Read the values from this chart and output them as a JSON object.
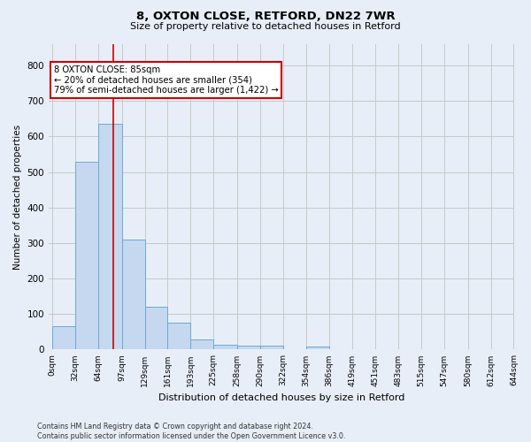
{
  "title_line1": "8, OXTON CLOSE, RETFORD, DN22 7WR",
  "title_line2": "Size of property relative to detached houses in Retford",
  "xlabel": "Distribution of detached houses by size in Retford",
  "ylabel": "Number of detached properties",
  "footnote": "Contains HM Land Registry data © Crown copyright and database right 2024.\nContains public sector information licensed under the Open Government Licence v3.0.",
  "bin_labels": [
    "0sqm",
    "32sqm",
    "64sqm",
    "97sqm",
    "129sqm",
    "161sqm",
    "193sqm",
    "225sqm",
    "258sqm",
    "290sqm",
    "322sqm",
    "354sqm",
    "386sqm",
    "419sqm",
    "451sqm",
    "483sqm",
    "515sqm",
    "547sqm",
    "580sqm",
    "612sqm",
    "644sqm"
  ],
  "bar_values": [
    65,
    530,
    635,
    310,
    120,
    77,
    28,
    14,
    10,
    10,
    0,
    8,
    0,
    0,
    0,
    0,
    0,
    0,
    0,
    0
  ],
  "bar_color": "#c5d8ef",
  "bar_edge_color": "#6aaad4",
  "property_line_x": 85,
  "annotation_text": "8 OXTON CLOSE: 85sqm\n← 20% of detached houses are smaller (354)\n79% of semi-detached houses are larger (1,422) →",
  "annotation_box_color": "#ffffff",
  "annotation_box_edge_color": "#cc0000",
  "ylim": [
    0,
    860
  ],
  "yticks": [
    0,
    100,
    200,
    300,
    400,
    500,
    600,
    700,
    800
  ],
  "grid_color": "#c8c8c8",
  "bg_color": "#e8eef8",
  "bin_edges": [
    0,
    32,
    64,
    97,
    129,
    161,
    193,
    225,
    258,
    290,
    322,
    354,
    386,
    419,
    451,
    483,
    515,
    547,
    580,
    612,
    644
  ]
}
